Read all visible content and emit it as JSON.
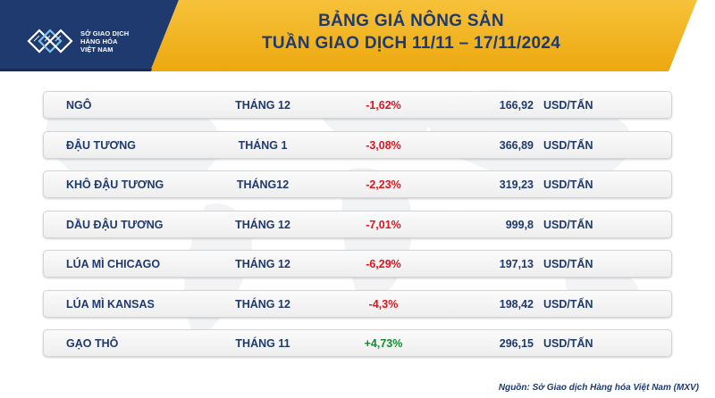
{
  "header": {
    "logo_lines": [
      "SỞ GIAO DỊCH",
      "HÀNG HÓA",
      "VIỆT NAM"
    ],
    "title_line1": "BẢNG GIÁ NÔNG SẢN",
    "title_line2": "TUẦN GIAO DỊCH 11/11 – 17/11/2024",
    "colors": {
      "band_dark": "#1f3a6f",
      "band_yellow": "#f2b21b",
      "title_text": "#1e3a6e"
    }
  },
  "rows": [
    {
      "name": "NGÔ",
      "month": "THÁNG 12",
      "change": "-1,62%",
      "direction": "down",
      "price": "166,92",
      "unit": "USD/TẤN"
    },
    {
      "name": "ĐẬU TƯƠNG",
      "month": "THÁNG 1",
      "change": "-3,08%",
      "direction": "down",
      "price": "366,89",
      "unit": "USD/TẤN"
    },
    {
      "name": "KHÔ ĐẬU TƯƠNG",
      "month": "THÁNG12",
      "change": "-2,23%",
      "direction": "down",
      "price": "319,23",
      "unit": "USD/TẤN"
    },
    {
      "name": "DẦU ĐẬU TƯƠNG",
      "month": "THÁNG 12",
      "change": "-7,01%",
      "direction": "down",
      "price": "999,8",
      "unit": "USD/TẤN"
    },
    {
      "name": "LÚA MÌ CHICAGO",
      "month": "THÁNG 12",
      "change": "-6,29%",
      "direction": "down",
      "price": "197,13",
      "unit": "USD/TẤN"
    },
    {
      "name": "LÚA MÌ KANSAS",
      "month": "THÁNG 12",
      "change": "-4,3%",
      "direction": "down",
      "price": "198,42",
      "unit": "USD/TẤN"
    },
    {
      "name": "GẠO THÔ",
      "month": "THÁNG 11",
      "change": "+4,73%",
      "direction": "up",
      "price": "296,15",
      "unit": "USD/TẤN"
    }
  ],
  "footer": {
    "source": "Nguồn: Sở Giao dịch Hàng hóa Việt Nam (MXV)"
  }
}
